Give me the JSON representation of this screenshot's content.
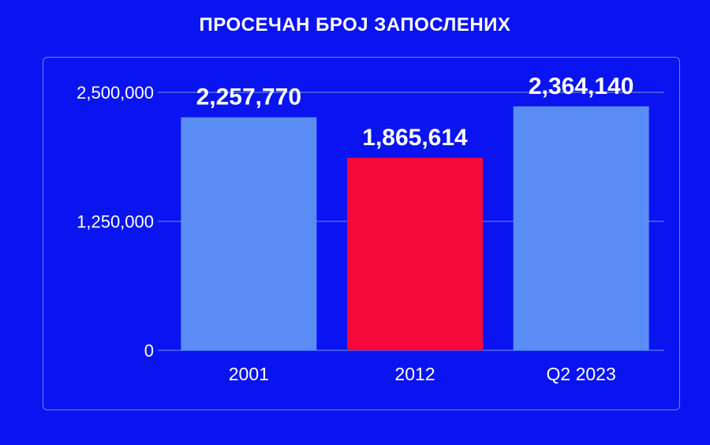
{
  "title": "ПРОСЕЧАН БРОЈ ЗАПОСЛЕНИХ",
  "colors": {
    "background": "#0a14f0",
    "bar_default": "#5a8cf5",
    "bar_highlight": "#f5083a",
    "gridline": "#4a6cf0",
    "text": "#ffffff"
  },
  "chart_data": {
    "type": "bar",
    "title": "ПРОСЕЧАН БРОЈ ЗАПОСЛЕНИХ",
    "categories": [
      "2001",
      "2012",
      "Q2 2023"
    ],
    "values": [
      2257770,
      1865614,
      2364140
    ],
    "data_labels": [
      "2,257,770",
      "1,865,614",
      "2,364,140"
    ],
    "highlight_index": 1,
    "xlabel": "",
    "ylabel": "",
    "ylim": [
      0,
      2500000
    ],
    "yticks": [
      0,
      1250000,
      2500000
    ],
    "ytick_labels": [
      "0",
      "1,250,000",
      "2,500,000"
    ],
    "grid": true,
    "legend": "none"
  }
}
